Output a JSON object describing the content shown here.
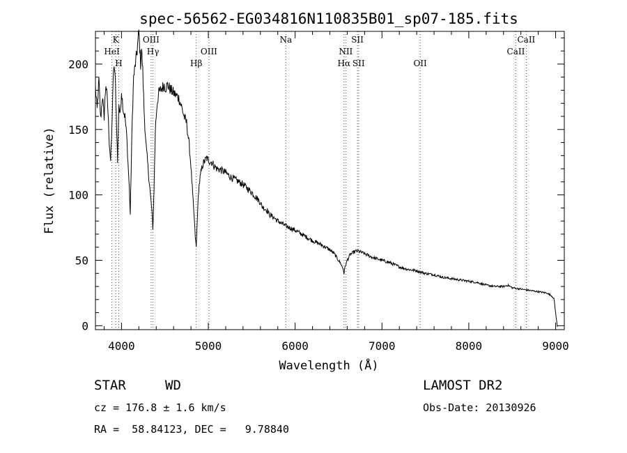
{
  "chart_data": {
    "type": "line",
    "title": "spec-56562-EG034816N110835B01_sp07-185.fits",
    "xlabel": "Wavelength (Å)",
    "ylabel": "Flux (relative)",
    "xlim": [
      3700,
      9100
    ],
    "ylim": [
      -3,
      225
    ],
    "x_ticks": [
      4000,
      5000,
      6000,
      7000,
      8000,
      9000
    ],
    "y_ticks": [
      0,
      50,
      100,
      150,
      200
    ],
    "x_minor_step": 200,
    "y_minor_step": 10,
    "series": [
      {
        "x": [
          3700,
          3720,
          3740,
          3760,
          3780,
          3800,
          3820,
          3840,
          3860,
          3875,
          3889,
          3900,
          3915,
          3930,
          3945,
          3955,
          3970,
          3985,
          4000,
          4020,
          4040,
          4060,
          4080,
          4090,
          4101,
          4110,
          4125,
          4140,
          4160,
          4180,
          4200,
          4220,
          4230,
          4245,
          4260,
          4280,
          4300,
          4320,
          4340,
          4350,
          4361,
          4375,
          4390,
          4410,
          4430,
          4450,
          4470,
          4490,
          4510,
          4530,
          4550,
          4570,
          4600,
          4630,
          4660,
          4690,
          4720,
          4750,
          4780,
          4800,
          4820,
          4835,
          4850,
          4861,
          4875,
          4890,
          4910,
          4930,
          4950,
          4980,
          5010,
          5040,
          5070,
          5100,
          5150,
          5200,
          5250,
          5300,
          5350,
          5400,
          5450,
          5500,
          5550,
          5580,
          5600,
          5620,
          5640,
          5660,
          5680,
          5700,
          5750,
          5800,
          5850,
          5900,
          6000,
          6100,
          6200,
          6300,
          6400,
          6450,
          6500,
          6530,
          6555,
          6563,
          6575,
          6600,
          6630,
          6670,
          6700,
          6730,
          6800,
          6900,
          7000,
          7100,
          7200,
          7300,
          7400,
          7500,
          7600,
          7700,
          7800,
          7900,
          8000,
          8100,
          8200,
          8300,
          8400,
          8450,
          8500,
          8600,
          8700,
          8800,
          8900,
          8950,
          8980,
          9000,
          9020
        ],
        "y": [
          182,
          165,
          188,
          158,
          175,
          160,
          185,
          170,
          140,
          126,
          150,
          180,
          200,
          185,
          150,
          125,
          170,
          160,
          180,
          165,
          160,
          145,
          118,
          105,
          85,
          115,
          160,
          190,
          200,
          210,
          225,
          200,
          212,
          195,
          165,
          140,
          125,
          110,
          95,
          88,
          73,
          105,
          150,
          170,
          178,
          180,
          182,
          184,
          182,
          184,
          182,
          180,
          178,
          176,
          174,
          168,
          160,
          155,
          138,
          122,
          100,
          85,
          68,
          60,
          85,
          105,
          115,
          122,
          125,
          128,
          126,
          125,
          122,
          120,
          119,
          117,
          114,
          112,
          110,
          108,
          105,
          102,
          98,
          96,
          94,
          91,
          90,
          89,
          88,
          85,
          83,
          80,
          78,
          76,
          73,
          69,
          65,
          62,
          58,
          55,
          50,
          47,
          43,
          40,
          45,
          50,
          54,
          56,
          57,
          57,
          55,
          52,
          50,
          48,
          45,
          43,
          42,
          40,
          39,
          37,
          36,
          35,
          34,
          33,
          31,
          30,
          30,
          31,
          29,
          28,
          27,
          26,
          25,
          23,
          21,
          10,
          -1
        ]
      }
    ],
    "lines": [
      {
        "wavelength": 3934,
        "label": "K",
        "row": 0
      },
      {
        "wavelength": 3889,
        "label": "HeI",
        "row": 1
      },
      {
        "wavelength": 3969,
        "label": "H",
        "row": 2
      },
      {
        "wavelength": 4341,
        "label": "OIII",
        "row": 0
      },
      {
        "wavelength": 4363,
        "label": "Hγ",
        "row": 1
      },
      {
        "wavelength": 4861,
        "label": "Hβ",
        "row": 2
      },
      {
        "wavelength": 5007,
        "label": "OIII",
        "row": 1
      },
      {
        "wavelength": 5893,
        "label": "Na",
        "row": 0
      },
      {
        "wavelength": 6583,
        "label": "NII",
        "row": 1
      },
      {
        "wavelength": 6563,
        "label": "Hα",
        "row": 2
      },
      {
        "wavelength": 6717,
        "label": "SII",
        "row": 0
      },
      {
        "wavelength": 6731,
        "label": "SII",
        "row": 2
      },
      {
        "wavelength": 7440,
        "label": "OII",
        "row": 2
      },
      {
        "wavelength": 8542,
        "label": "CaII",
        "row": 1
      },
      {
        "wavelength": 8662,
        "label": "CaII",
        "row": 0
      }
    ],
    "line_color": "#ff0000",
    "footer": {
      "object_class": "STAR",
      "subclass": "WD",
      "survey": "LAMOST DR2",
      "redshift": "cz = 176.8 ± 1.6 km/s",
      "obs_date": "Obs-Date: 20130926",
      "coords": "RA =  58.84123, DEC =   9.78840"
    }
  }
}
